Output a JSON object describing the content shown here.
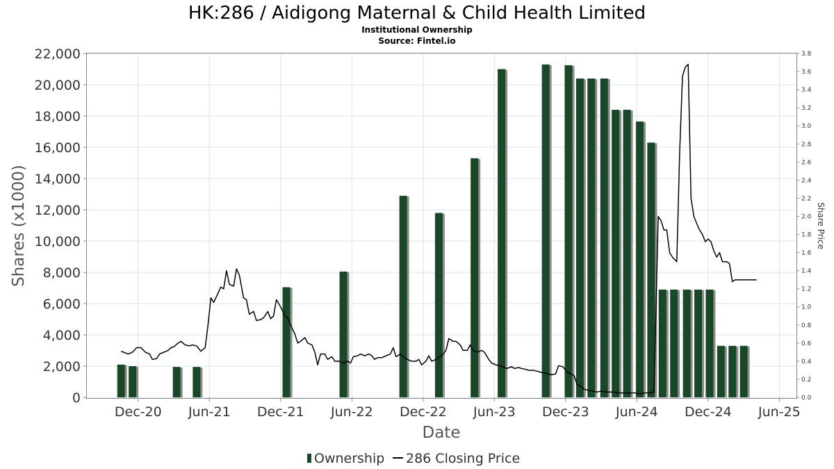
{
  "chart_data": {
    "type": "bar",
    "title": "HK:286 / Aidigong Maternal & Child Health Limited",
    "subtitle": "Institutional Ownership",
    "source": "Source: Fintel.io",
    "xlabel": "Date",
    "ylabel": "Shares (x1000)",
    "y2label": "Share Price",
    "ylim": [
      0,
      22000
    ],
    "y2lim": [
      0,
      3.8
    ],
    "yticks": [
      "0",
      "2,000",
      "4,000",
      "6,000",
      "8,000",
      "10,000",
      "12,000",
      "14,000",
      "16,000",
      "18,000",
      "20,000",
      "22,000"
    ],
    "y2ticks": [
      "0.0",
      "0.2",
      "0.4",
      "0.6",
      "0.8",
      "1.0",
      "1.2",
      "1.4",
      "1.6",
      "1.8",
      "2.0",
      "2.2",
      "2.4",
      "2.6",
      "2.8",
      "3.0",
      "3.2",
      "3.4",
      "3.6",
      "3.8"
    ],
    "xticks": [
      {
        "label": "Dec-20",
        "t": 2020.92
      },
      {
        "label": "Jun-21",
        "t": 2021.42
      },
      {
        "label": "Dec-21",
        "t": 2021.92
      },
      {
        "label": "Jun-22",
        "t": 2022.42
      },
      {
        "label": "Dec-22",
        "t": 2022.92
      },
      {
        "label": "Jun-23",
        "t": 2023.42
      },
      {
        "label": "Dec-23",
        "t": 2023.92
      },
      {
        "label": "Jun-24",
        "t": 2024.42
      },
      {
        "label": "Dec-24",
        "t": 2024.92
      },
      {
        "label": "Jun-25",
        "t": 2025.42
      }
    ],
    "xlim": [
      2020.56,
      2025.54
    ],
    "grid": true,
    "legend_position": "bottom",
    "legend": [
      {
        "label": "Ownership",
        "color": "#1a4728"
      },
      {
        "label": "286 Closing Price",
        "color": "#000000"
      }
    ],
    "series": [
      {
        "name": "Ownership",
        "type": "bar",
        "color": "#1a4728",
        "shadow_color": "#8c8c8c",
        "points": [
          {
            "t": 2020.8,
            "v": 2100
          },
          {
            "t": 2020.88,
            "v": 2000
          },
          {
            "t": 2021.19,
            "v": 1950
          },
          {
            "t": 2021.33,
            "v": 1950
          },
          {
            "t": 2021.96,
            "v": 7050
          },
          {
            "t": 2022.36,
            "v": 8050
          },
          {
            "t": 2022.78,
            "v": 12900
          },
          {
            "t": 2023.03,
            "v": 11800
          },
          {
            "t": 2023.28,
            "v": 15300
          },
          {
            "t": 2023.47,
            "v": 21000
          },
          {
            "t": 2023.78,
            "v": 21300
          },
          {
            "t": 2023.94,
            "v": 21250
          },
          {
            "t": 2024.02,
            "v": 20400
          },
          {
            "t": 2024.1,
            "v": 20400
          },
          {
            "t": 2024.19,
            "v": 20400
          },
          {
            "t": 2024.27,
            "v": 18400
          },
          {
            "t": 2024.35,
            "v": 18400
          },
          {
            "t": 2024.44,
            "v": 17650
          },
          {
            "t": 2024.52,
            "v": 16300
          },
          {
            "t": 2024.6,
            "v": 6900
          },
          {
            "t": 2024.68,
            "v": 6900
          },
          {
            "t": 2024.77,
            "v": 6900
          },
          {
            "t": 2024.85,
            "v": 6900
          },
          {
            "t": 2024.93,
            "v": 6900
          },
          {
            "t": 2025.01,
            "v": 3300
          },
          {
            "t": 2025.09,
            "v": 3300
          },
          {
            "t": 2025.17,
            "v": 3300
          }
        ]
      },
      {
        "name": "286 Closing Price",
        "type": "line",
        "color": "#000000",
        "axis": "right",
        "points": [
          [
            2020.8,
            0.51
          ],
          [
            2020.85,
            0.48
          ],
          [
            2020.88,
            0.5
          ],
          [
            2020.91,
            0.55
          ],
          [
            2020.94,
            0.55
          ],
          [
            2020.97,
            0.5
          ],
          [
            2021.0,
            0.48
          ],
          [
            2021.02,
            0.42
          ],
          [
            2021.05,
            0.43
          ],
          [
            2021.07,
            0.48
          ],
          [
            2021.1,
            0.5
          ],
          [
            2021.13,
            0.52
          ],
          [
            2021.15,
            0.55
          ],
          [
            2021.17,
            0.56
          ],
          [
            2021.2,
            0.6
          ],
          [
            2021.22,
            0.62
          ],
          [
            2021.25,
            0.58
          ],
          [
            2021.28,
            0.57
          ],
          [
            2021.3,
            0.58
          ],
          [
            2021.33,
            0.57
          ],
          [
            2021.36,
            0.51
          ],
          [
            2021.39,
            0.55
          ],
          [
            2021.41,
            0.8
          ],
          [
            2021.43,
            1.1
          ],
          [
            2021.45,
            1.05
          ],
          [
            2021.48,
            1.15
          ],
          [
            2021.5,
            1.22
          ],
          [
            2021.52,
            1.2
          ],
          [
            2021.54,
            1.4
          ],
          [
            2021.56,
            1.25
          ],
          [
            2021.59,
            1.23
          ],
          [
            2021.61,
            1.42
          ],
          [
            2021.63,
            1.35
          ],
          [
            2021.66,
            1.1
          ],
          [
            2021.68,
            1.08
          ],
          [
            2021.7,
            0.92
          ],
          [
            2021.73,
            0.95
          ],
          [
            2021.75,
            0.85
          ],
          [
            2021.78,
            0.86
          ],
          [
            2021.8,
            0.88
          ],
          [
            2021.83,
            0.95
          ],
          [
            2021.85,
            0.87
          ],
          [
            2021.87,
            0.9
          ],
          [
            2021.89,
            1.08
          ],
          [
            2021.92,
            1.0
          ],
          [
            2021.95,
            0.9
          ],
          [
            2021.97,
            0.88
          ],
          [
            2021.99,
            0.8
          ],
          [
            2022.02,
            0.7
          ],
          [
            2022.04,
            0.6
          ],
          [
            2022.06,
            0.62
          ],
          [
            2022.09,
            0.66
          ],
          [
            2022.11,
            0.6
          ],
          [
            2022.14,
            0.58
          ],
          [
            2022.16,
            0.5
          ],
          [
            2022.18,
            0.36
          ],
          [
            2022.2,
            0.48
          ],
          [
            2022.23,
            0.48
          ],
          [
            2022.25,
            0.42
          ],
          [
            2022.28,
            0.45
          ],
          [
            2022.3,
            0.4
          ],
          [
            2022.33,
            0.4
          ],
          [
            2022.36,
            0.38
          ],
          [
            2022.39,
            0.4
          ],
          [
            2022.41,
            0.38
          ],
          [
            2022.43,
            0.45
          ],
          [
            2022.46,
            0.46
          ],
          [
            2022.48,
            0.48
          ],
          [
            2022.51,
            0.46
          ],
          [
            2022.54,
            0.48
          ],
          [
            2022.56,
            0.46
          ],
          [
            2022.58,
            0.42
          ],
          [
            2022.6,
            0.44
          ],
          [
            2022.63,
            0.44
          ],
          [
            2022.66,
            0.46
          ],
          [
            2022.69,
            0.48
          ],
          [
            2022.71,
            0.55
          ],
          [
            2022.73,
            0.45
          ],
          [
            2022.76,
            0.48
          ],
          [
            2022.78,
            0.45
          ],
          [
            2022.81,
            0.42
          ],
          [
            2022.84,
            0.4
          ],
          [
            2022.87,
            0.4
          ],
          [
            2022.89,
            0.42
          ],
          [
            2022.91,
            0.36
          ],
          [
            2022.94,
            0.4
          ],
          [
            2022.96,
            0.46
          ],
          [
            2022.98,
            0.4
          ],
          [
            2023.01,
            0.42
          ],
          [
            2023.04,
            0.45
          ],
          [
            2023.06,
            0.48
          ],
          [
            2023.08,
            0.52
          ],
          [
            2023.1,
            0.65
          ],
          [
            2023.13,
            0.62
          ],
          [
            2023.15,
            0.62
          ],
          [
            2023.18,
            0.58
          ],
          [
            2023.2,
            0.52
          ],
          [
            2023.23,
            0.52
          ],
          [
            2023.25,
            0.58
          ],
          [
            2023.27,
            0.52
          ],
          [
            2023.3,
            0.5
          ],
          [
            2023.33,
            0.52
          ],
          [
            2023.35,
            0.5
          ],
          [
            2023.38,
            0.42
          ],
          [
            2023.4,
            0.38
          ],
          [
            2023.43,
            0.36
          ],
          [
            2023.46,
            0.35
          ],
          [
            2023.49,
            0.33
          ],
          [
            2023.51,
            0.32
          ],
          [
            2023.54,
            0.34
          ],
          [
            2023.56,
            0.32
          ],
          [
            2023.59,
            0.33
          ],
          [
            2023.61,
            0.32
          ],
          [
            2023.64,
            0.31
          ],
          [
            2023.66,
            0.3
          ],
          [
            2023.69,
            0.3
          ],
          [
            2023.72,
            0.29
          ],
          [
            2023.74,
            0.28
          ],
          [
            2023.77,
            0.27
          ],
          [
            2023.8,
            0.26
          ],
          [
            2023.82,
            0.25
          ],
          [
            2023.85,
            0.26
          ],
          [
            2023.87,
            0.35
          ],
          [
            2023.9,
            0.34
          ],
          [
            2023.93,
            0.28
          ],
          [
            2023.96,
            0.26
          ],
          [
            2023.98,
            0.24
          ],
          [
            2024.0,
            0.14
          ],
          [
            2024.03,
            0.12
          ],
          [
            2024.05,
            0.09
          ],
          [
            2024.08,
            0.08
          ],
          [
            2024.11,
            0.07
          ],
          [
            2024.14,
            0.06
          ],
          [
            2024.17,
            0.07
          ],
          [
            2024.2,
            0.06
          ],
          [
            2024.23,
            0.06
          ],
          [
            2024.26,
            0.06
          ],
          [
            2024.29,
            0.05
          ],
          [
            2024.32,
            0.05
          ],
          [
            2024.35,
            0.05
          ],
          [
            2024.38,
            0.05
          ],
          [
            2024.41,
            0.05
          ],
          [
            2024.44,
            0.04
          ],
          [
            2024.47,
            0.05
          ],
          [
            2024.5,
            0.05
          ],
          [
            2024.54,
            0.06
          ],
          [
            2024.57,
            2.0
          ],
          [
            2024.59,
            1.95
          ],
          [
            2024.61,
            1.85
          ],
          [
            2024.63,
            1.85
          ],
          [
            2024.65,
            1.6
          ],
          [
            2024.67,
            1.55
          ],
          [
            2024.7,
            1.5
          ],
          [
            2024.72,
            2.7
          ],
          [
            2024.74,
            3.55
          ],
          [
            2024.76,
            3.65
          ],
          [
            2024.78,
            3.68
          ],
          [
            2024.8,
            2.2
          ],
          [
            2024.82,
            2.0
          ],
          [
            2024.84,
            1.92
          ],
          [
            2024.86,
            1.85
          ],
          [
            2024.88,
            1.8
          ],
          [
            2024.9,
            1.72
          ],
          [
            2024.92,
            1.75
          ],
          [
            2024.94,
            1.72
          ],
          [
            2024.96,
            1.62
          ],
          [
            2024.98,
            1.55
          ],
          [
            2025.0,
            1.6
          ],
          [
            2025.02,
            1.5
          ],
          [
            2025.05,
            1.5
          ],
          [
            2025.07,
            1.48
          ],
          [
            2025.09,
            1.28
          ],
          [
            2025.11,
            1.3
          ],
          [
            2025.14,
            1.3
          ],
          [
            2025.17,
            1.3
          ],
          [
            2025.2,
            1.3
          ],
          [
            2025.23,
            1.3
          ],
          [
            2025.26,
            1.3
          ]
        ]
      }
    ]
  }
}
